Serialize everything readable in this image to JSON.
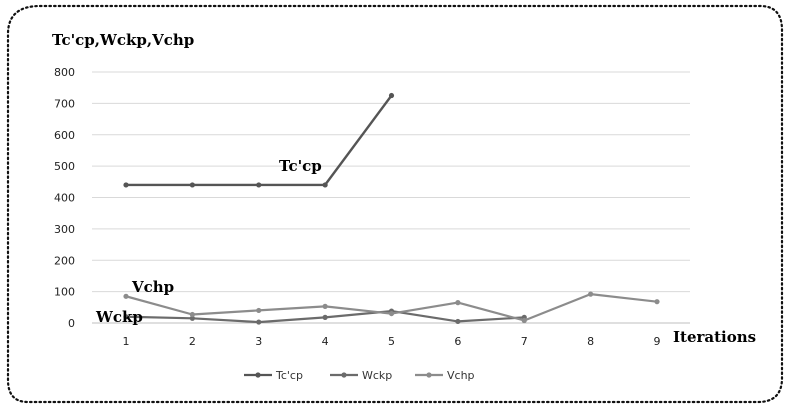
{
  "chart_data": {
    "type": "line",
    "title": "",
    "ylabel": "Tc'cp,Wckp,Vchp",
    "xlabel": "Iterations",
    "x": [
      1,
      2,
      3,
      4,
      5,
      6,
      7,
      8,
      9
    ],
    "ylim": [
      0,
      800
    ],
    "yticks": [
      0,
      100,
      200,
      300,
      400,
      500,
      600,
      700,
      800
    ],
    "grid": true,
    "legend": "bottom",
    "series": [
      {
        "name": "Tc'cp",
        "color": "#555555",
        "width": 2.4,
        "values": [
          440,
          440,
          440,
          440,
          725,
          null,
          null,
          null,
          null
        ]
      },
      {
        "name": "Wckp",
        "color": "#6b6b6b",
        "width": 2.2,
        "values": [
          20,
          15,
          3,
          18,
          38,
          5,
          18,
          null,
          null
        ]
      },
      {
        "name": "Vchp",
        "color": "#8c8c8c",
        "width": 2.2,
        "values": [
          85,
          27,
          40,
          53,
          30,
          65,
          8,
          92,
          68
        ]
      }
    ],
    "annotations": [
      {
        "text": "Tc'cp",
        "series": "Tc'cp"
      },
      {
        "text": "Vchp",
        "series": "Vchp"
      },
      {
        "text": "Wckp",
        "series": "Wckp"
      }
    ]
  }
}
